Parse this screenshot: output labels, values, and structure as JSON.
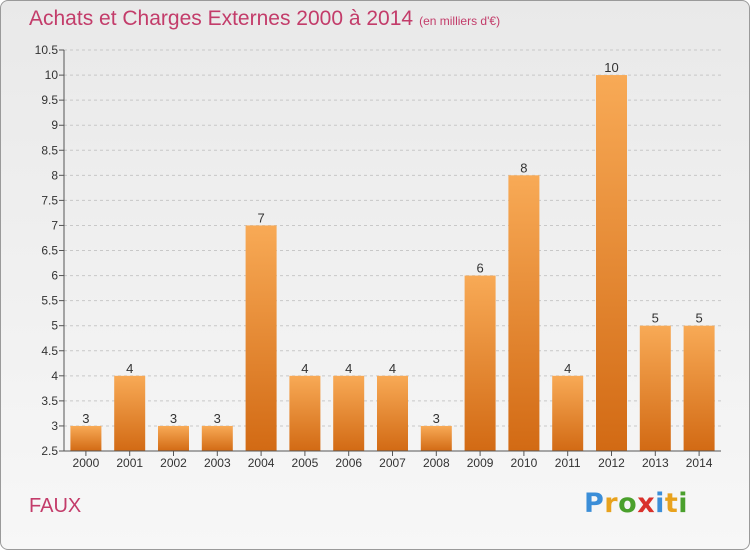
{
  "header": {
    "title": "Achats et Charges Externes 2000 à 2014",
    "unit": "(en milliers d'€)"
  },
  "commune": "FAUX",
  "logo": {
    "letters": [
      {
        "char": "P",
        "color": "#3b8ed8"
      },
      {
        "char": "r",
        "color": "#e8a21d"
      },
      {
        "char": "o",
        "color": "#4aa02c"
      },
      {
        "char": "x",
        "color": "#d9312b"
      },
      {
        "char": "i",
        "color": "#3b8ed8"
      },
      {
        "char": "t",
        "color": "#e8a21d"
      },
      {
        "char": "i",
        "color": "#4aa02c"
      }
    ]
  },
  "colors": {
    "bar_top": "#f8aa56",
    "bar_bottom": "#d26a14",
    "grid": "#c8c8c8",
    "title": "#c33c6a"
  },
  "chart_data": {
    "type": "bar",
    "categories": [
      "2000",
      "2001",
      "2002",
      "2003",
      "2004",
      "2005",
      "2006",
      "2007",
      "2008",
      "2009",
      "2010",
      "2011",
      "2012",
      "2013",
      "2014"
    ],
    "values": [
      3,
      4,
      3,
      3,
      7,
      4,
      4,
      4,
      3,
      6,
      8,
      4,
      10,
      5,
      5
    ],
    "data_labels": [
      "3",
      "4",
      "3",
      "3",
      "7",
      "4",
      "4",
      "4",
      "3",
      "6",
      "8",
      "4",
      "10",
      "5",
      "5"
    ],
    "ylim": [
      2.5,
      10.5
    ],
    "yticks": [
      "2.5",
      "3",
      "3.5",
      "4",
      "4.5",
      "5",
      "5.5",
      "6",
      "6.5",
      "7",
      "7.5",
      "8",
      "8.5",
      "9",
      "9.5",
      "10",
      "10.5"
    ],
    "grid": true
  }
}
